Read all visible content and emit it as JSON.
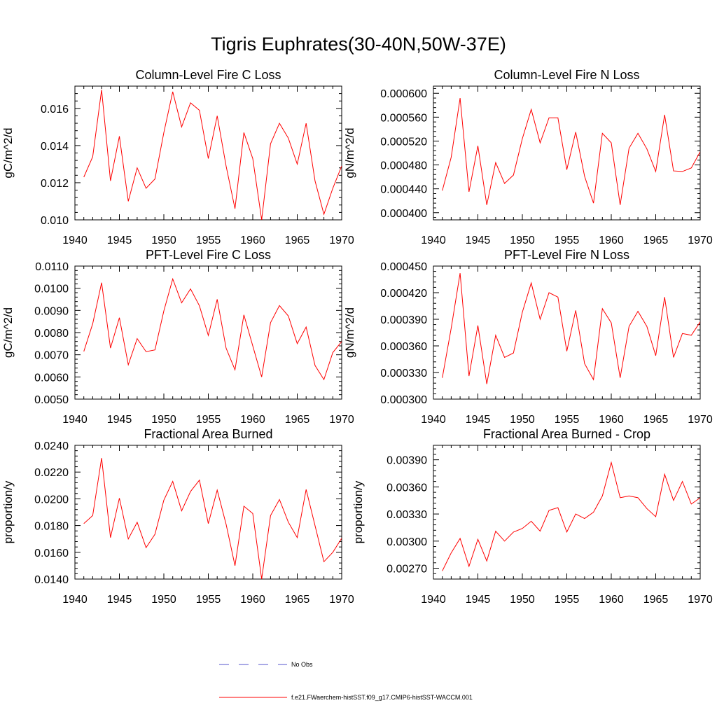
{
  "title": "Tigris Euphrates(30-40N,50W-37E)",
  "colors": {
    "series": "#ff0000",
    "obs": "#5555cc",
    "axis": "#000000"
  },
  "legend": {
    "obs_label": "No Obs",
    "model_label": "f.e21.FWaerchem-histSST.f09_g17.CMIP6-histSST-WACCM.001"
  },
  "chart_data": [
    {
      "type": "line",
      "title": "Column-Level Fire C Loss",
      "ylabel": "gC/m^2/d",
      "xlim": [
        1940,
        1970
      ],
      "ylim": [
        0.01,
        0.0172
      ],
      "xticks": [
        "1940",
        "1945",
        "1950",
        "1955",
        "1960",
        "1965",
        "1970"
      ],
      "yticks": [
        "0.010",
        "0.012",
        "0.014",
        "0.016"
      ],
      "ytick_values": [
        0.01,
        0.012,
        0.014,
        0.016
      ],
      "x": [
        1941,
        1942,
        1943,
        1944,
        1945,
        1946,
        1947,
        1948,
        1949,
        1950,
        1951,
        1952,
        1953,
        1954,
        1955,
        1956,
        1957,
        1958,
        1959,
        1960,
        1961,
        1962,
        1963,
        1964,
        1965,
        1966,
        1967,
        1968,
        1969,
        1970
      ],
      "series": [
        {
          "name": "f.e21.FWaerchem-histSST.f09_g17.CMIP6-histSST-WACCM.001",
          "values": [
            0.0123,
            0.0134,
            0.017,
            0.0121,
            0.0145,
            0.011,
            0.0128,
            0.0117,
            0.0122,
            0.0147,
            0.0169,
            0.015,
            0.0163,
            0.0159,
            0.0133,
            0.0156,
            0.0129,
            0.0106,
            0.0147,
            0.0133,
            0.01,
            0.0141,
            0.0152,
            0.0144,
            0.013,
            0.0152,
            0.0121,
            0.0103,
            0.0117,
            0.0129
          ]
        }
      ]
    },
    {
      "type": "line",
      "title": "Column-Level Fire N Loss",
      "ylabel": "gN/m^2/d",
      "xlim": [
        1940,
        1970
      ],
      "ylim": [
        0.000388,
        0.000612
      ],
      "xticks": [
        "1940",
        "1945",
        "1950",
        "1955",
        "1960",
        "1965",
        "1970"
      ],
      "yticks": [
        "0.000400",
        "0.000440",
        "0.000480",
        "0.000520",
        "0.000560",
        "0.000600"
      ],
      "ytick_values": [
        0.0004,
        0.00044,
        0.00048,
        0.00052,
        0.00056,
        0.0006
      ],
      "x": [
        1941,
        1942,
        1943,
        1944,
        1945,
        1946,
        1947,
        1948,
        1949,
        1950,
        1951,
        1952,
        1953,
        1954,
        1955,
        1956,
        1957,
        1958,
        1959,
        1960,
        1961,
        1962,
        1963,
        1964,
        1965,
        1966,
        1967,
        1968,
        1969,
        1970
      ],
      "series": [
        {
          "name": "f.e21.FWaerchem-histSST.f09_g17.CMIP6-histSST-WACCM.001",
          "values": [
            0.000437,
            0.000493,
            0.000592,
            0.000435,
            0.000512,
            0.000413,
            0.000484,
            0.000449,
            0.000463,
            0.000524,
            0.000573,
            0.000517,
            0.000559,
            0.000559,
            0.000472,
            0.000535,
            0.000461,
            0.000416,
            0.000533,
            0.000517,
            0.000413,
            0.000508,
            0.000533,
            0.000507,
            0.000469,
            0.000564,
            0.00047,
            0.000469,
            0.000475,
            0.000502
          ]
        }
      ]
    },
    {
      "type": "line",
      "title": "PFT-Level Fire C Loss",
      "ylabel": "gC/m^2/d",
      "xlim": [
        1940,
        1970
      ],
      "ylim": [
        0.005,
        0.011
      ],
      "xticks": [
        "1940",
        "1945",
        "1950",
        "1955",
        "1960",
        "1965",
        "1970"
      ],
      "yticks": [
        "0.0050",
        "0.0060",
        "0.0070",
        "0.0080",
        "0.0090",
        "0.0100",
        "0.0110"
      ],
      "ytick_values": [
        0.005,
        0.006,
        0.007,
        0.008,
        0.009,
        0.01,
        0.011
      ],
      "x": [
        1941,
        1942,
        1943,
        1944,
        1945,
        1946,
        1947,
        1948,
        1949,
        1950,
        1951,
        1952,
        1953,
        1954,
        1955,
        1956,
        1957,
        1958,
        1959,
        1960,
        1961,
        1962,
        1963,
        1964,
        1965,
        1966,
        1967,
        1968,
        1969,
        1970
      ],
      "series": [
        {
          "name": "f.e21.FWaerchem-histSST.f09_g17.CMIP6-histSST-WACCM.001",
          "values": [
            0.00715,
            0.0084,
            0.01025,
            0.0073,
            0.00867,
            0.00655,
            0.00773,
            0.00714,
            0.00722,
            0.00898,
            0.01042,
            0.00934,
            0.00997,
            0.00921,
            0.00787,
            0.0095,
            0.0073,
            0.00632,
            0.0088,
            0.0074,
            0.006,
            0.00845,
            0.00922,
            0.00875,
            0.0075,
            0.00825,
            0.00652,
            0.00588,
            0.0071,
            0.0076
          ]
        }
      ]
    },
    {
      "type": "line",
      "title": "PFT-Level Fire N Loss",
      "ylabel": "gN/m^2/d",
      "xlim": [
        1940,
        1970
      ],
      "ylim": [
        0.0003,
        0.00045
      ],
      "xticks": [
        "1940",
        "1945",
        "1950",
        "1955",
        "1960",
        "1965",
        "1970"
      ],
      "yticks": [
        "0.000300",
        "0.000330",
        "0.000360",
        "0.000390",
        "0.000420",
        "0.000450"
      ],
      "ytick_values": [
        0.0003,
        0.00033,
        0.00036,
        0.00039,
        0.00042,
        0.00045
      ],
      "x": [
        1941,
        1942,
        1943,
        1944,
        1945,
        1946,
        1947,
        1948,
        1949,
        1950,
        1951,
        1952,
        1953,
        1954,
        1955,
        1956,
        1957,
        1958,
        1959,
        1960,
        1961,
        1962,
        1963,
        1964,
        1965,
        1966,
        1967,
        1968,
        1969,
        1970
      ],
      "series": [
        {
          "name": "f.e21.FWaerchem-histSST.f09_g17.CMIP6-histSST-WACCM.001",
          "values": [
            0.000324,
            0.00038,
            0.000442,
            0.000326,
            0.000383,
            0.000317,
            0.000372,
            0.000347,
            0.000352,
            0.000398,
            0.000431,
            0.00039,
            0.00042,
            0.000415,
            0.000354,
            0.0004,
            0.00034,
            0.000322,
            0.000402,
            0.000386,
            0.000324,
            0.000382,
            0.000399,
            0.000382,
            0.000349,
            0.000415,
            0.000347,
            0.000374,
            0.000372,
            0.000387
          ]
        }
      ]
    },
    {
      "type": "line",
      "title": "Fractional Area Burned",
      "ylabel": "proportion/y",
      "xlim": [
        1940,
        1970
      ],
      "ylim": [
        0.014,
        0.024
      ],
      "xticks": [
        "1940",
        "1945",
        "1950",
        "1955",
        "1960",
        "1965",
        "1970"
      ],
      "yticks": [
        "0.0140",
        "0.0160",
        "0.0180",
        "0.0200",
        "0.0220",
        "0.0240"
      ],
      "ytick_values": [
        0.014,
        0.016,
        0.018,
        0.02,
        0.022,
        0.024
      ],
      "x": [
        1941,
        1942,
        1943,
        1944,
        1945,
        1946,
        1947,
        1948,
        1949,
        1950,
        1951,
        1952,
        1953,
        1954,
        1955,
        1956,
        1957,
        1958,
        1959,
        1960,
        1961,
        1962,
        1963,
        1964,
        1965,
        1966,
        1967,
        1968,
        1969,
        1970
      ],
      "series": [
        {
          "name": "f.e21.FWaerchem-histSST.f09_g17.CMIP6-histSST-WACCM.001",
          "values": [
            0.01815,
            0.01875,
            0.02305,
            0.0171,
            0.02005,
            0.017,
            0.01825,
            0.01635,
            0.01735,
            0.0199,
            0.0213,
            0.0191,
            0.02055,
            0.0214,
            0.01815,
            0.02065,
            0.0181,
            0.015,
            0.01945,
            0.0189,
            0.014,
            0.01875,
            0.01995,
            0.01825,
            0.0171,
            0.0207,
            0.018,
            0.0153,
            0.016,
            0.01705
          ]
        }
      ]
    },
    {
      "type": "line",
      "title": "Fractional Area Burned - Crop",
      "ylabel": "proportion/y",
      "xlim": [
        1940,
        1970
      ],
      "ylim": [
        0.00258,
        0.00406
      ],
      "xticks": [
        "1940",
        "1945",
        "1950",
        "1955",
        "1960",
        "1965",
        "1970"
      ],
      "yticks": [
        "0.00270",
        "0.00300",
        "0.00330",
        "0.00360",
        "0.00390"
      ],
      "ytick_values": [
        0.0027,
        0.003,
        0.0033,
        0.0036,
        0.0039
      ],
      "x": [
        1941,
        1942,
        1943,
        1944,
        1945,
        1946,
        1947,
        1948,
        1949,
        1950,
        1951,
        1952,
        1953,
        1954,
        1955,
        1956,
        1957,
        1958,
        1959,
        1960,
        1961,
        1962,
        1963,
        1964,
        1965,
        1966,
        1967,
        1968,
        1969,
        1970
      ],
      "series": [
        {
          "name": "f.e21.FWaerchem-histSST.f09_g17.CMIP6-histSST-WACCM.001",
          "values": [
            0.00267,
            0.00287,
            0.00303,
            0.00272,
            0.00302,
            0.00278,
            0.00311,
            0.003,
            0.0031,
            0.00314,
            0.00322,
            0.00311,
            0.00334,
            0.00337,
            0.0031,
            0.0033,
            0.00325,
            0.00332,
            0.0035,
            0.00387,
            0.00348,
            0.0035,
            0.00348,
            0.00336,
            0.00327,
            0.00374,
            0.00345,
            0.00366,
            0.00341,
            0.00348
          ]
        }
      ]
    }
  ]
}
